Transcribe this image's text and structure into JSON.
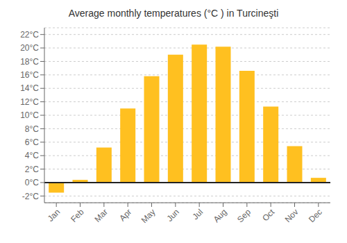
{
  "chart_data": {
    "type": "bar",
    "title": "Average monthly temperatures (°C ) in Turcineşti",
    "categories": [
      "Jan",
      "Feb",
      "Mar",
      "Apr",
      "May",
      "Jun",
      "Jul",
      "Aug",
      "Sep",
      "Oct",
      "Nov",
      "Dec"
    ],
    "values": [
      -1.5,
      0.4,
      5.2,
      11.0,
      15.8,
      19.0,
      20.5,
      20.2,
      16.6,
      11.3,
      5.4,
      0.7
    ],
    "color": "#FFC020",
    "ylim": [
      -3,
      23
    ],
    "yticks": [
      {
        "value": -2,
        "label": "-2°C"
      },
      {
        "value": 0,
        "label": "0°C"
      },
      {
        "value": 2,
        "label": "2°C"
      },
      {
        "value": 4,
        "label": "4°C"
      },
      {
        "value": 6,
        "label": "6°C"
      },
      {
        "value": 8,
        "label": "8°C"
      },
      {
        "value": 10,
        "label": "10°C"
      },
      {
        "value": 12,
        "label": "12°C"
      },
      {
        "value": 14,
        "label": "14°C"
      },
      {
        "value": 16,
        "label": "16°C"
      },
      {
        "value": 18,
        "label": "18°C"
      },
      {
        "value": 20,
        "label": "20°C"
      },
      {
        "value": 22,
        "label": "22°C"
      }
    ],
    "grid": true
  }
}
